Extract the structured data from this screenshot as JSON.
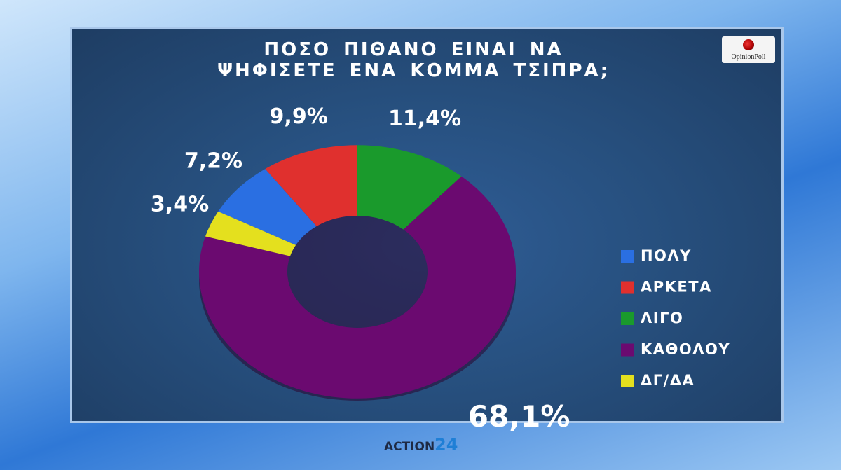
{
  "chart_data": {
    "type": "donut",
    "title": "ΠΟΣΟ ΠΙΘΑΝΟ ΕΙΝΑΙ ΝΑ ΨΗΦΙΣΕΤΕ ΕΝΑ ΚΟΜΜΑ ΤΣΙΠΡΑ;",
    "categories": [
      "ΠΟΛΥ",
      "ΑΡΚΕΤΑ",
      "ΛΙΓΟ",
      "ΚΑΘΟΛΟΥ",
      "ΔΓ/ΔΑ"
    ],
    "values": [
      7.2,
      9.9,
      11.4,
      68.1,
      3.4
    ],
    "value_labels": [
      "7,2%",
      "9,9%",
      "11,4%",
      "68,1%",
      "3,4%"
    ],
    "colors": [
      "#2a6fe2",
      "#e0302e",
      "#1a9a2c",
      "#6b0a70",
      "#e4e01e"
    ]
  },
  "logo": "OpinionPoll",
  "channel": "ACTION",
  "channel_number": "24"
}
